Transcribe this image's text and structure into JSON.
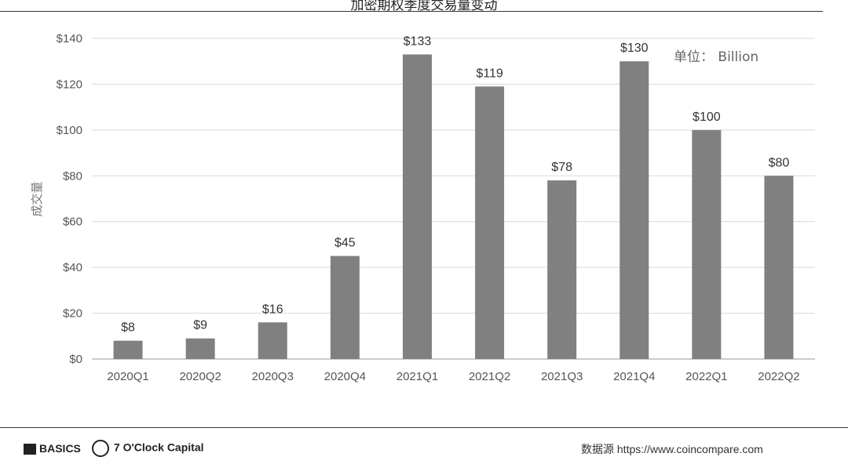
{
  "chart_data": {
    "type": "bar",
    "title": "加密期权季度交易量变动",
    "ylabel": "成交量",
    "xlabel": "",
    "unit_note": "单位： Billion",
    "categories": [
      "2020Q1",
      "2020Q2",
      "2020Q3",
      "2020Q4",
      "2021Q1",
      "2021Q2",
      "2021Q3",
      "2021Q4",
      "2022Q1",
      "2022Q2"
    ],
    "values": [
      8,
      9,
      16,
      45,
      133,
      119,
      78,
      130,
      100,
      80
    ],
    "value_labels": [
      "$8",
      "$9",
      "$16",
      "$45",
      "$133",
      "$119",
      "$78",
      "$130",
      "$100",
      "$80"
    ],
    "yticks": [
      "$0",
      "$20",
      "$40",
      "$60",
      "$80",
      "$100",
      "$120",
      "$140"
    ],
    "ytick_values": [
      0,
      20,
      40,
      60,
      80,
      100,
      120,
      140
    ],
    "ylim": [
      0,
      140
    ],
    "grid": true,
    "bar_color": "#808080"
  },
  "footer": {
    "brand1": "BASICS",
    "brand2": "7 O'Clock Capital",
    "source": "数据源 https://www.coincompare.com"
  }
}
